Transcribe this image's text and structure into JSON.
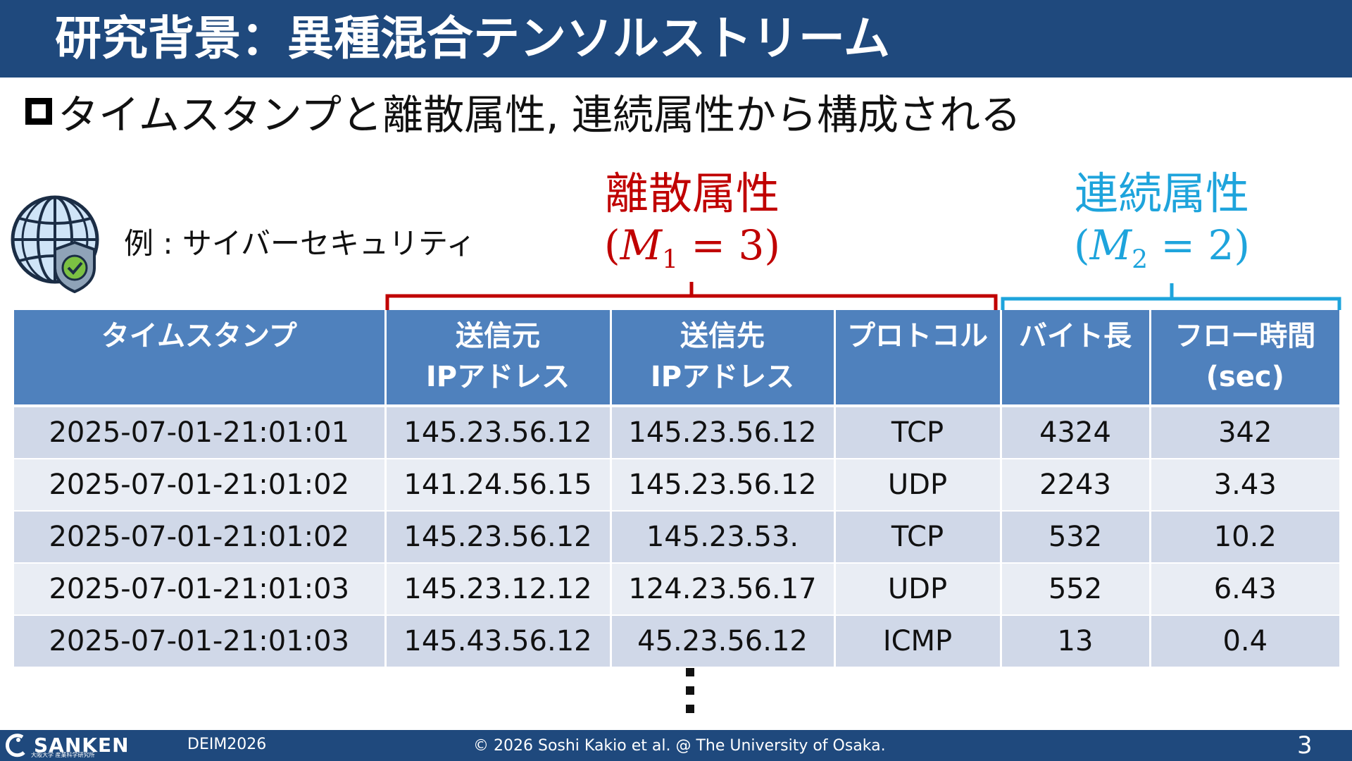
{
  "slide": {
    "title": "研究背景：異種混合テンソルストリーム",
    "bullet": "タイムスタンプと離散属性, 連続属性から構成される",
    "example_label": "例 : サイバーセキュリティ",
    "discrete": {
      "name": "離散属性",
      "open": "(",
      "var": "M",
      "sub": "1",
      "rest": " = 3)"
    },
    "continuous": {
      "name": "連続属性",
      "open": "(",
      "var": "M",
      "sub": "2",
      "rest": " = 2)"
    },
    "colors": {
      "title_bar": "#1f497d",
      "discrete": "#c00000",
      "continuous": "#1ea4dc",
      "header": "#4f81bd"
    },
    "icons": [
      "globe-shield-icon",
      "bullet-square-icon",
      "vertical-ellipsis-icon"
    ]
  },
  "table": {
    "headers": [
      "タイムスタンプ",
      "送信元\nIPアドレス",
      "送信先\nIPアドレス",
      "プロトコル",
      "バイト長",
      "フロー時間\n(sec)"
    ],
    "rows": [
      [
        "2025-07-01-21:01:01",
        "145.23.56.12",
        "145.23.56.12",
        "TCP",
        "4324",
        "342"
      ],
      [
        "2025-07-01-21:01:02",
        "141.24.56.15",
        "145.23.56.12",
        "UDP",
        "2243",
        "3.43"
      ],
      [
        "2025-07-01-21:01:02",
        "145.23.56.12",
        "145.23.53.",
        "TCP",
        "532",
        "10.2"
      ],
      [
        "2025-07-01-21:01:03",
        "145.23.12.12",
        "124.23.56.17",
        "UDP",
        "552",
        "6.43"
      ],
      [
        "2025-07-01-21:01:03",
        "145.43.56.12",
        "45.23.56.12",
        "ICMP",
        "13",
        "0.4"
      ]
    ]
  },
  "footer": {
    "logo": "SANKEN",
    "logo_sub": "大阪大学 産業科学研究所",
    "conference": "DEIM2026",
    "copyright": "© 2026 Soshi Kakio et al. @ The University of Osaka.",
    "page": "3"
  }
}
